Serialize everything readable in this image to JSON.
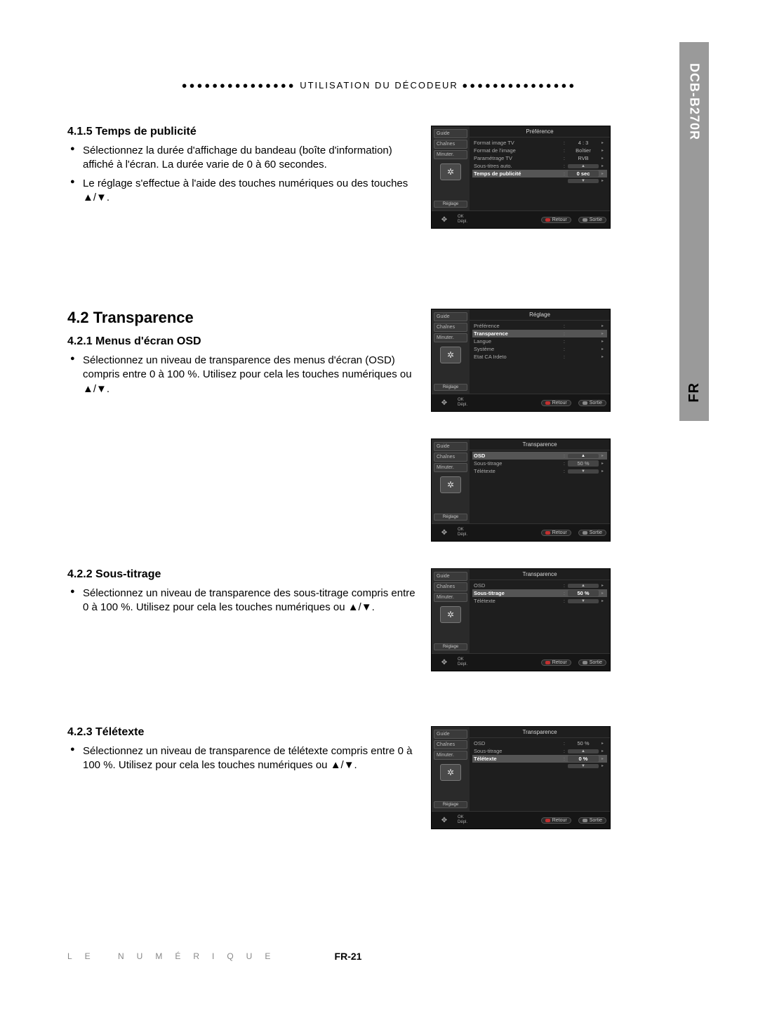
{
  "side": {
    "model": "DCB-B270R",
    "lang": "FR"
  },
  "header": {
    "dots_left": "●●●●●●●●●●●●●●●",
    "title": "UTILISATION DU DÉCODEUR",
    "dots_right": "●●●●●●●●●●●●●●●"
  },
  "sections": {
    "s415": {
      "heading": "4.1.5 Temps de publicité",
      "items": [
        "Sélectionnez la durée d'affichage du bandeau (boîte d'information) affiché à l'écran. La durée varie de 0 à 60 secondes.",
        "Le réglage s'effectue à l'aide des touches numériques ou des touches ▲/▼."
      ]
    },
    "s42": {
      "heading": "4.2 Transparence"
    },
    "s421": {
      "heading": "4.2.1 Menus d'écran OSD",
      "items": [
        "Sélectionnez un niveau de transparence des menus d'écran (OSD) compris entre 0 à 100 %. Utilisez pour cela les touches numériques ou ▲/▼."
      ]
    },
    "s422": {
      "heading": "4.2.2 Sous-titrage",
      "items": [
        "Sélectionnez un niveau de transparence des sous-titrage compris entre 0 à 100 %. Utilisez pour cela les touches numériques ou ▲/▼."
      ]
    },
    "s423": {
      "heading": "4.2.3 Télétexte",
      "items": [
        "Sélectionnez un niveau de transparence de télétexte compris entre 0 à 100 %. Utilisez pour cela les touches numériques ou ▲/▼."
      ]
    }
  },
  "osd_common": {
    "side_items": [
      "Guide",
      "Chaînes",
      "Minuter."
    ],
    "side_foot": "Réglage",
    "remote_ok": "OK",
    "remote_depl": "Dépl.",
    "btn_retour": "Retour",
    "btn_sortie": "Sortie"
  },
  "osd1": {
    "title": "Préférence",
    "rows": [
      {
        "lbl": "Format image TV",
        "val": "4 : 3",
        "hl": false,
        "box": false,
        "updown": false
      },
      {
        "lbl": "Format de l'image",
        "val": "Boîtier",
        "hl": false,
        "box": false,
        "updown": false
      },
      {
        "lbl": "Paramétrage TV",
        "val": "RVB",
        "hl": false,
        "box": false,
        "updown": false
      },
      {
        "lbl": "Sous-titres auto.",
        "val": "▲",
        "hl": false,
        "box": false,
        "updown": true
      },
      {
        "lbl": "Temps de publicité",
        "val": "0 sec",
        "hl": true,
        "box": true,
        "updown": false
      },
      {
        "lbl": "",
        "val": "▼",
        "hl": false,
        "box": false,
        "updown": true
      }
    ]
  },
  "osd2": {
    "title": "Réglage",
    "rows": [
      {
        "lbl": "Préférence",
        "val": "",
        "hl": false,
        "box": false,
        "updown": false
      },
      {
        "lbl": "Transparence",
        "val": "",
        "hl": true,
        "box": false,
        "updown": false
      },
      {
        "lbl": "Langue",
        "val": "",
        "hl": false,
        "box": false,
        "updown": false
      },
      {
        "lbl": "Système",
        "val": "",
        "hl": false,
        "box": false,
        "updown": false
      },
      {
        "lbl": "Etat CA Irdeto",
        "val": "",
        "hl": false,
        "box": false,
        "updown": false
      }
    ]
  },
  "osd3": {
    "title": "Transparence",
    "rows": [
      {
        "lbl": "OSD",
        "val": "▲",
        "hl": true,
        "box": false,
        "updown": true
      },
      {
        "lbl": "Sous-titrage",
        "val": "50 %",
        "hl": false,
        "box": true,
        "updown": false
      },
      {
        "lbl": "Télétexte",
        "val": "▼",
        "hl": false,
        "box": false,
        "updown": true
      }
    ]
  },
  "osd4": {
    "title": "Transparence",
    "rows": [
      {
        "lbl": "OSD",
        "val": "▲",
        "hl": false,
        "box": false,
        "updown": true
      },
      {
        "lbl": "Sous-titrage",
        "val": "50 %",
        "hl": true,
        "box": true,
        "updown": false
      },
      {
        "lbl": "Télétexte",
        "val": "▼",
        "hl": false,
        "box": false,
        "updown": true
      }
    ]
  },
  "osd5": {
    "title": "Transparence",
    "rows": [
      {
        "lbl": "OSD",
        "val": "50 %",
        "hl": false,
        "box": false,
        "updown": false
      },
      {
        "lbl": "Sous-titrage",
        "val": "▲",
        "hl": false,
        "box": false,
        "updown": true
      },
      {
        "lbl": "Télétexte",
        "val": "0 %",
        "hl": true,
        "box": true,
        "updown": false
      },
      {
        "lbl": "",
        "val": "▼",
        "hl": false,
        "box": false,
        "updown": true
      }
    ]
  },
  "footer": {
    "brand": "LE NUMÉRIQUE",
    "page": "FR-21"
  },
  "colors": {
    "page_bg": "#ffffff",
    "text": "#000000",
    "side_bg": "#9a9a9a",
    "osd_bg": "#1a1a1a",
    "osd_panel": "#2a2a2a",
    "osd_hl": "#555555",
    "footer_brand": "#888888"
  }
}
